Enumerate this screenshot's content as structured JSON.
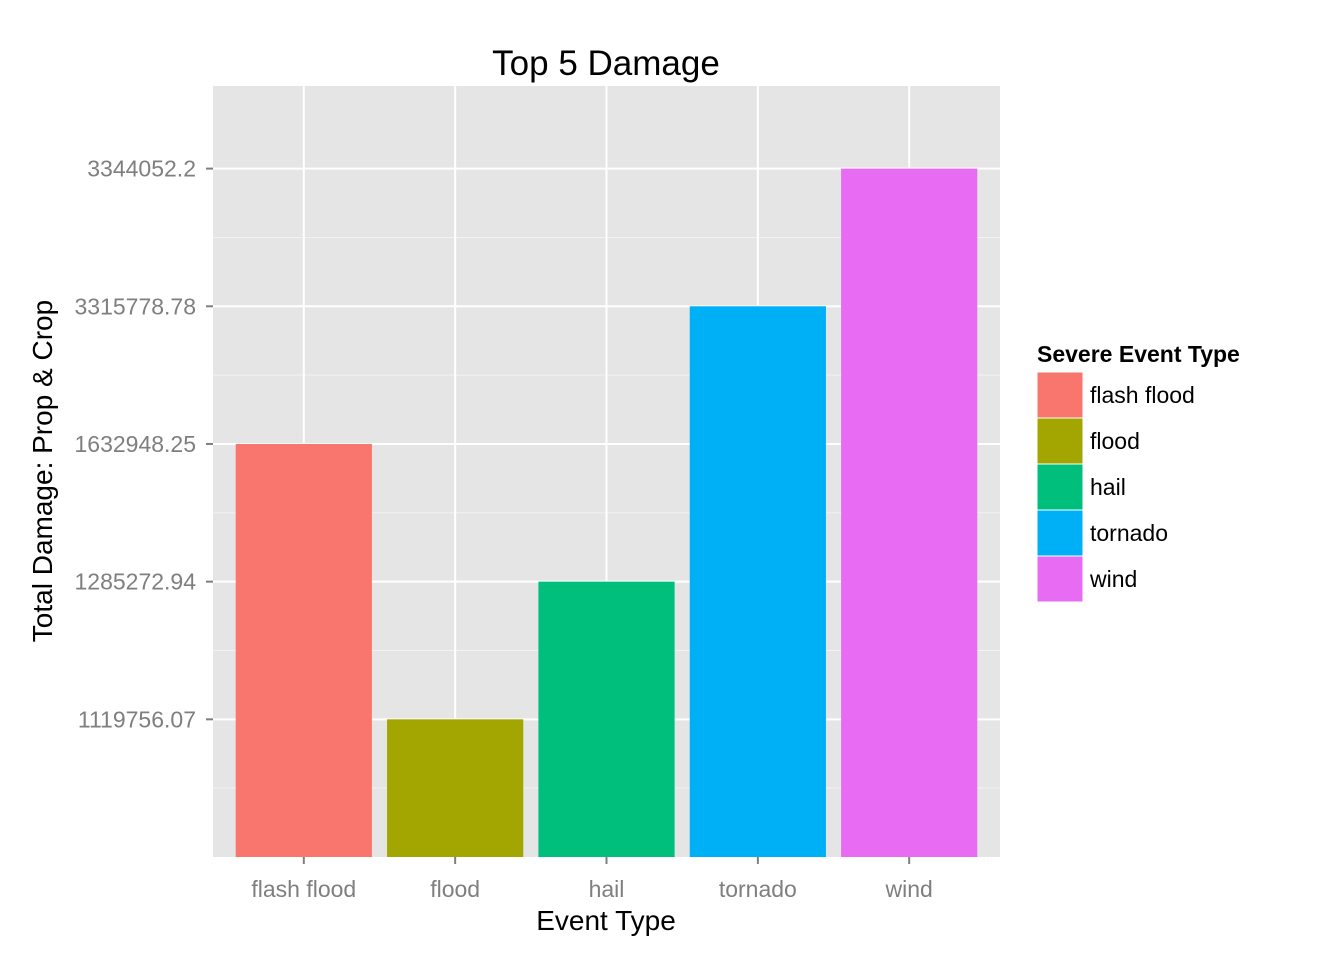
{
  "chart_data": {
    "type": "bar",
    "title": "Top 5 Damage",
    "xlabel": "Event Type",
    "ylabel": "Total Damage: Prop & Crop",
    "categories": [
      "flash flood",
      "flood",
      "hail",
      "tornado",
      "wind"
    ],
    "values": [
      1632948.25,
      1119756.07,
      1285272.94,
      3315778.78,
      3344052.2
    ],
    "y_tick_labels": [
      "1119756.07",
      "1285272.94",
      "1632948.25",
      "3315778.78",
      "3344052.2"
    ],
    "y_axis_scale": "discrete (bar values shown as ordered factor levels)",
    "colors": [
      "#F8766D",
      "#A3A500",
      "#00BF7D",
      "#00B0F6",
      "#E76BF3"
    ],
    "grid": true,
    "legend": {
      "title": "Severe Event Type",
      "position": "right",
      "entries": [
        "flash flood",
        "flood",
        "hail",
        "tornado",
        "wind"
      ]
    }
  }
}
